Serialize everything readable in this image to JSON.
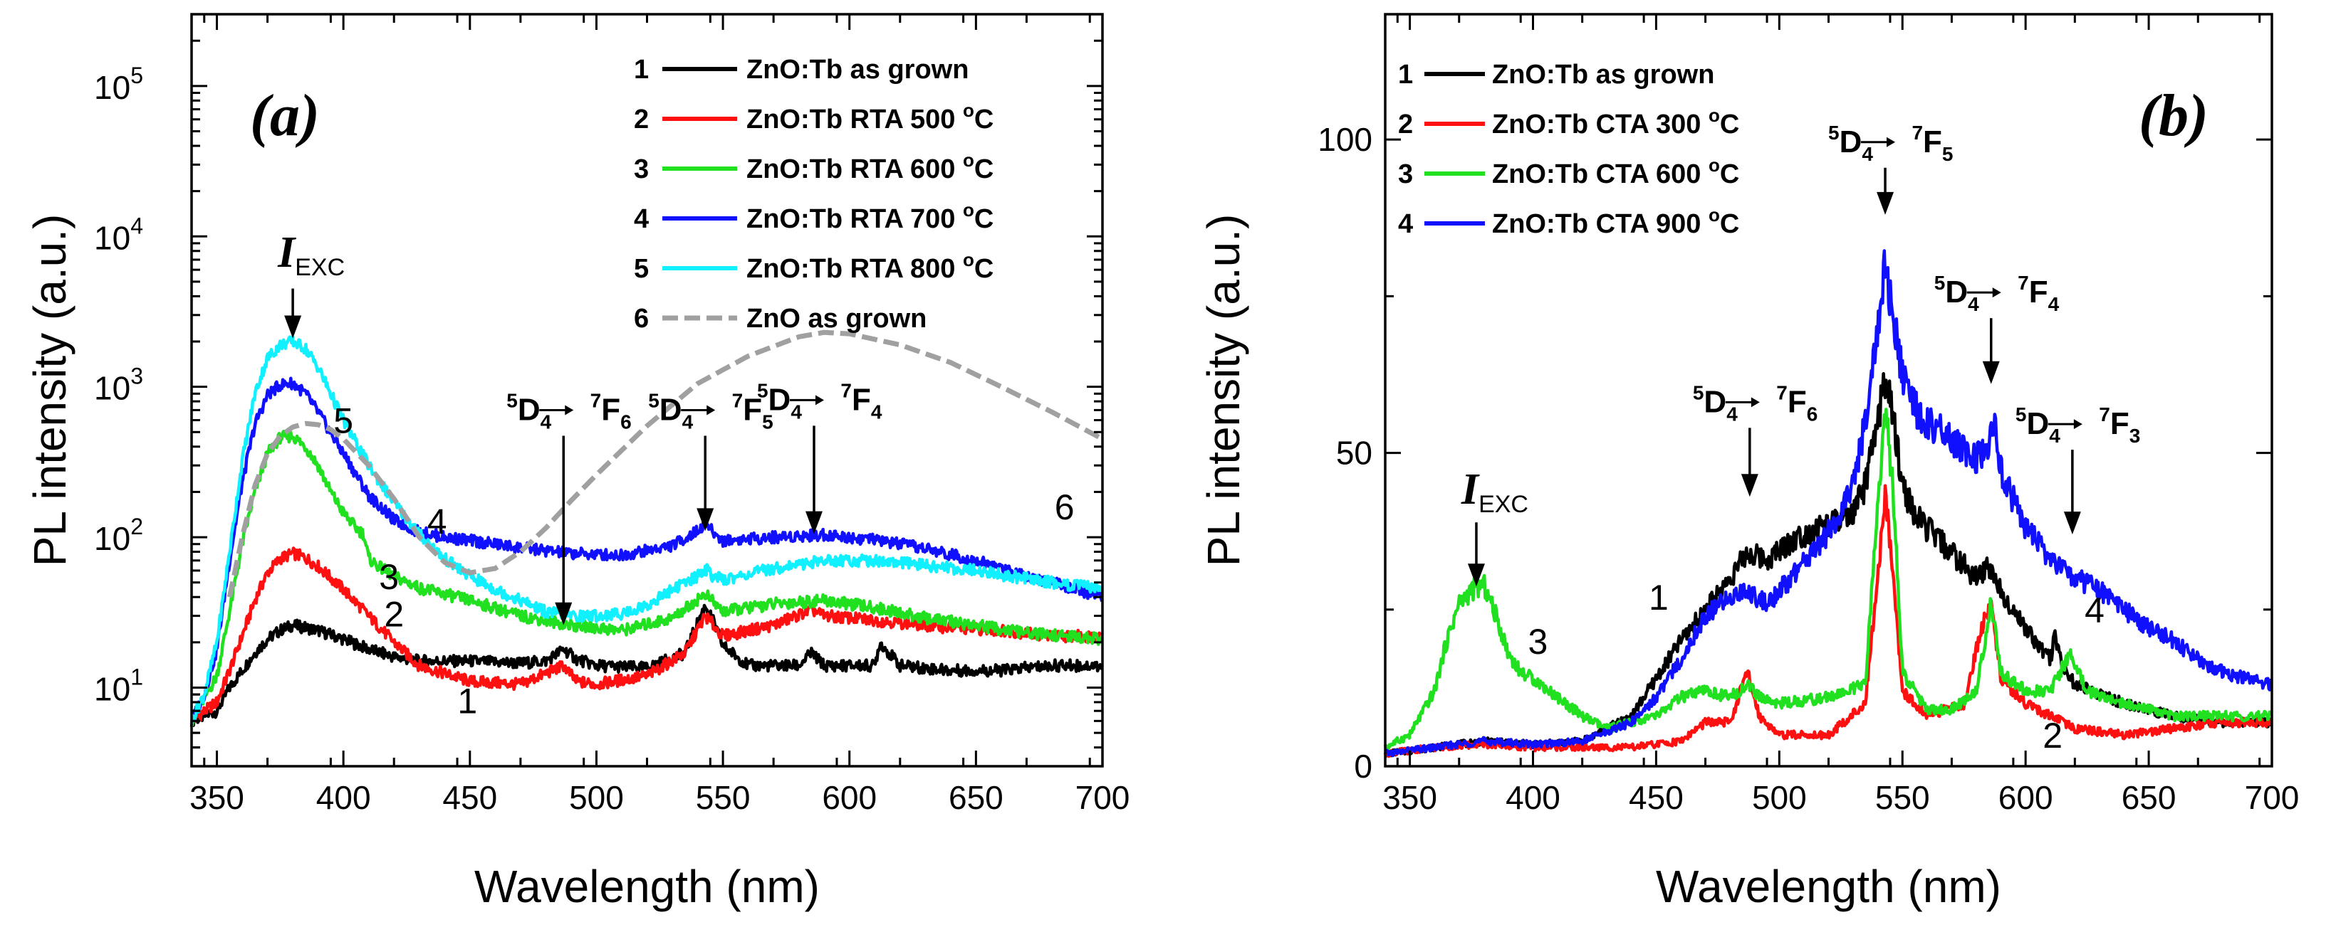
{
  "colors": {
    "series_black": "#000000",
    "series_red": "#ff1010",
    "series_green": "#20e020",
    "series_blue": "#1010ff",
    "series_cyan": "#10f0ff",
    "series_gray": "#a0a0a0"
  },
  "chart_data": [
    {
      "type": "line",
      "panel_label": "a",
      "xlabel": "Wavelength (nm)",
      "ylabel": "PL intensity (a.u.)",
      "yscale": "log",
      "xlim": [
        340,
        700
      ],
      "ylim": [
        3,
        300000
      ],
      "x_ticks": [
        350,
        400,
        450,
        500,
        550,
        600,
        650,
        700
      ],
      "x_tick_labels": [
        "350",
        "400",
        "450",
        "500",
        "550",
        "600",
        "650",
        "700"
      ],
      "y_tick_labels": [
        {
          "value": 10,
          "base": "10",
          "exp": "1"
        },
        {
          "value": 100,
          "base": "10",
          "exp": "2"
        },
        {
          "value": 1000,
          "base": "10",
          "exp": "3"
        },
        {
          "value": 10000,
          "base": "10",
          "exp": "4"
        },
        {
          "value": 100000,
          "base": "10",
          "exp": "5"
        }
      ],
      "series": [
        {
          "num": "1",
          "name": "ZnO:Tb as grown",
          "color": "#000000",
          "dashed": false,
          "x": [
            340,
            350,
            355,
            360,
            365,
            370,
            375,
            380,
            385,
            390,
            400,
            410,
            420,
            430,
            450,
            470,
            480,
            487,
            492,
            500,
            520,
            535,
            540,
            543,
            546,
            550,
            560,
            580,
            585,
            590,
            600,
            610,
            612,
            620,
            640,
            660,
            680,
            700
          ],
          "y": [
            6,
            7,
            10,
            13,
            17,
            21,
            24,
            26,
            25,
            24,
            21,
            18,
            16,
            15,
            15,
            14.5,
            15,
            18,
            15.5,
            14,
            13.5,
            17,
            27,
            35,
            28,
            19,
            14,
            14,
            17,
            14,
            14,
            14,
            20,
            14,
            13,
            13,
            14,
            14
          ]
        },
        {
          "num": "2",
          "name": "ZnO:Tb RTA 500 °C",
          "color": "#ff1010",
          "dashed": false,
          "x": [
            340,
            350,
            355,
            360,
            365,
            370,
            375,
            380,
            385,
            390,
            400,
            410,
            420,
            430,
            450,
            470,
            487,
            492,
            500,
            520,
            535,
            543,
            550,
            570,
            585,
            590,
            600,
            620,
            640,
            660,
            680,
            700
          ],
          "y": [
            6,
            8,
            13,
            22,
            38,
            58,
            72,
            78,
            73,
            64,
            45,
            30,
            20,
            14,
            11,
            10.5,
            14,
            11,
            10.5,
            12,
            17,
            30,
            22,
            26,
            33,
            30,
            29,
            27,
            25,
            24,
            22,
            22
          ]
        },
        {
          "num": "3",
          "name": "ZnO:Tb RTA 600 °C",
          "color": "#20e020",
          "dashed": false,
          "x": [
            340,
            350,
            355,
            360,
            365,
            370,
            375,
            380,
            385,
            390,
            395,
            400,
            405,
            408,
            410,
            415,
            420,
            430,
            450,
            470,
            490,
            510,
            530,
            543,
            550,
            570,
            590,
            610,
            630,
            650,
            670,
            700
          ],
          "y": [
            6,
            12,
            32,
            90,
            200,
            360,
            460,
            470,
            400,
            300,
            200,
            145,
            115,
            105,
            72,
            62,
            55,
            46,
            38,
            30,
            26,
            24,
            29,
            42,
            32,
            36,
            38,
            34,
            29,
            26,
            23,
            21
          ]
        },
        {
          "num": "4",
          "name": "ZnO:Tb RTA 700 °C",
          "color": "#1010ff",
          "dashed": false,
          "x": [
            340,
            345,
            350,
            355,
            360,
            365,
            370,
            375,
            380,
            385,
            390,
            400,
            410,
            420,
            430,
            440,
            450,
            470,
            490,
            510,
            530,
            540,
            543,
            546,
            550,
            570,
            590,
            610,
            630,
            650,
            670,
            700
          ],
          "y": [
            6,
            9,
            18,
            70,
            230,
            560,
            880,
            1030,
            1060,
            900,
            680,
            360,
            190,
            130,
            108,
            100,
            95,
            85,
            78,
            76,
            88,
            110,
            125,
            108,
            95,
            100,
            104,
            96,
            84,
            70,
            56,
            40
          ]
        },
        {
          "num": "5",
          "name": "ZnO:Tb RTA 800 °C",
          "color": "#10f0ff",
          "dashed": false,
          "x": [
            340,
            345,
            350,
            355,
            360,
            365,
            370,
            375,
            380,
            385,
            390,
            395,
            400,
            410,
            420,
            430,
            440,
            450,
            460,
            470,
            480,
            490,
            500,
            510,
            520,
            530,
            540,
            543,
            546,
            550,
            570,
            590,
            610,
            630,
            650,
            670,
            700
          ],
          "y": [
            6,
            9,
            20,
            80,
            320,
            900,
            1550,
            1900,
            2000,
            1800,
            1350,
            900,
            600,
            300,
            170,
            105,
            72,
            55,
            45,
            38,
            32,
            30,
            30,
            31,
            35,
            45,
            55,
            62,
            55,
            52,
            62,
            70,
            70,
            65,
            60,
            53,
            45
          ]
        },
        {
          "num": "6",
          "name": "ZnO as grown",
          "color": "#a0a0a0",
          "dashed": true,
          "x": [
            355,
            360,
            365,
            370,
            375,
            380,
            385,
            390,
            395,
            400,
            410,
            420,
            430,
            440,
            450,
            460,
            470,
            480,
            490,
            500,
            520,
            540,
            560,
            580,
            590,
            600,
            620,
            640,
            660,
            680,
            700
          ],
          "y": [
            40,
            100,
            220,
            360,
            470,
            540,
            570,
            560,
            520,
            450,
            300,
            180,
            100,
            68,
            58,
            62,
            80,
            115,
            175,
            260,
            550,
            1050,
            1600,
            2150,
            2300,
            2250,
            1900,
            1450,
            1000,
            680,
            450
          ]
        }
      ],
      "curve_numbers": [
        {
          "text": "1",
          "x": 449,
          "y": 8.2
        },
        {
          "text": "2",
          "x": 420,
          "y": 31
        },
        {
          "text": "3",
          "x": 418,
          "y": 55
        },
        {
          "text": "4",
          "x": 437,
          "y": 128
        },
        {
          "text": "5",
          "x": 400,
          "y": 600
        },
        {
          "text": "6",
          "x": 685,
          "y": 160
        }
      ],
      "annotations": [
        {
          "id": "iexc",
          "text": "I",
          "sub": "EXC",
          "x": 380,
          "y_text": 7000,
          "y_start": 4500,
          "y_end": 2100
        },
        {
          "id": "d4f6",
          "text": "5D4→7F6",
          "pre_sup": "5",
          "main": "D",
          "sub": "4",
          "sup2": "7",
          "main2": "F",
          "sub2": "6",
          "x": 487,
          "y_text": 600,
          "y_start": 480,
          "y_end": 26
        },
        {
          "id": "d4f5",
          "text": "5D4→7F5",
          "pre_sup": "5",
          "main": "D",
          "sub": "4",
          "sup2": "7",
          "main2": "F",
          "sub2": "5",
          "x": 543,
          "y_text": 600,
          "y_start": 480,
          "y_end": 110
        },
        {
          "id": "d4f4",
          "text": "5D4→7F4",
          "pre_sup": "5",
          "main": "D",
          "sub": "4",
          "sup2": "7",
          "main2": "F",
          "sub2": "4",
          "x": 586,
          "y_text": 700,
          "y_start": 520,
          "y_end": 105
        }
      ]
    },
    {
      "type": "line",
      "panel_label": "b",
      "xlabel": "Wavelength (nm)",
      "ylabel": "PL intensity (a.u.)",
      "yscale": "linear",
      "xlim": [
        340,
        700
      ],
      "ylim": [
        0,
        120
      ],
      "x_ticks": [
        350,
        400,
        450,
        500,
        550,
        600,
        650,
        700
      ],
      "x_tick_labels": [
        "350",
        "400",
        "450",
        "500",
        "550",
        "600",
        "650",
        "700"
      ],
      "y_ticks": [
        0,
        50,
        100
      ],
      "y_tick_labels": [
        "0",
        "50",
        "100"
      ],
      "series": [
        {
          "num": "1",
          "name": "ZnO:Tb as grown",
          "color": "#000000",
          "dashed": false,
          "x": [
            340,
            360,
            380,
            400,
            420,
            440,
            460,
            480,
            487,
            495,
            505,
            515,
            525,
            530,
            535,
            540,
            543,
            546,
            550,
            555,
            560,
            570,
            580,
            585,
            590,
            600,
            610,
            612,
            615,
            620,
            640,
            660,
            680,
            700
          ],
          "y": [
            2,
            3,
            4,
            3.5,
            4,
            8,
            20,
            30,
            34,
            33,
            36,
            38,
            39,
            40,
            45,
            55,
            62,
            56,
            45,
            40,
            38,
            34,
            30,
            32,
            28,
            22,
            17,
            21,
            16,
            13,
            10,
            8,
            7,
            7
          ]
        },
        {
          "num": "2",
          "name": "ZnO:Tb CTA 300 °C",
          "color": "#ff1010",
          "dashed": false,
          "x": [
            340,
            360,
            380,
            400,
            420,
            440,
            460,
            470,
            480,
            487,
            492,
            500,
            520,
            535,
            540,
            543,
            546,
            550,
            560,
            575,
            582,
            586,
            590,
            600,
            610,
            620,
            640,
            660,
            680,
            700
          ],
          "y": [
            2,
            3,
            3.5,
            3,
            3,
            3,
            4,
            7,
            7,
            15,
            8,
            5,
            5,
            10,
            30,
            44,
            32,
            12,
            8,
            10,
            22,
            26,
            14,
            10,
            8,
            6,
            5,
            6,
            7,
            7
          ]
        },
        {
          "num": "3",
          "name": "ZnO:Tb CTA 600 °C",
          "color": "#20e020",
          "dashed": false,
          "x": [
            340,
            350,
            360,
            365,
            370,
            375,
            380,
            385,
            390,
            395,
            400,
            410,
            420,
            430,
            440,
            450,
            460,
            470,
            480,
            487,
            492,
            500,
            520,
            535,
            540,
            543,
            546,
            550,
            560,
            570,
            580,
            586,
            590,
            600,
            610,
            618,
            625,
            640,
            660,
            680,
            700
          ],
          "y": [
            3,
            5,
            12,
            20,
            26,
            28,
            29,
            24,
            18,
            15,
            14,
            11,
            8,
            6,
            7,
            8,
            11,
            12,
            11,
            13,
            11,
            10,
            11,
            13,
            42,
            57,
            45,
            15,
            9,
            9,
            12,
            26,
            15,
            12,
            12,
            18,
            12,
            10,
            8,
            8,
            8
          ]
        },
        {
          "num": "4",
          "name": "ZnO:Tb CTA 900 °C",
          "color": "#1010ff",
          "dashed": false,
          "x": [
            340,
            360,
            380,
            400,
            420,
            440,
            450,
            460,
            470,
            480,
            487,
            495,
            505,
            515,
            525,
            530,
            535,
            540,
            543,
            546,
            550,
            555,
            560,
            570,
            575,
            580,
            585,
            587,
            590,
            600,
            610,
            620,
            630,
            640,
            650,
            660,
            670,
            680,
            700
          ],
          "y": [
            2,
            3,
            4,
            3.5,
            4,
            7,
            11,
            17,
            24,
            27,
            28,
            26,
            30,
            35,
            40,
            45,
            55,
            70,
            80,
            72,
            62,
            57,
            55,
            52,
            50,
            49,
            50,
            55,
            47,
            38,
            33,
            30,
            28,
            25,
            22,
            20,
            17,
            15,
            13
          ]
        }
      ],
      "curve_numbers": [
        {
          "text": "1",
          "x": 451,
          "y": 27
        },
        {
          "text": "2",
          "x": 611,
          "y": 5
        },
        {
          "text": "3",
          "x": 402,
          "y": 20
        },
        {
          "text": "4",
          "x": 628,
          "y": 25
        }
      ],
      "annotations": [
        {
          "id": "iexc",
          "text": "I",
          "sub": "EXC",
          "x": 377,
          "y_text": 43,
          "y_start": 40,
          "y_end": 39
        },
        {
          "id": "d4f6",
          "text": "5D4→7F6",
          "pre_sup": "5",
          "main": "D",
          "sub": "4",
          "sup2": "7",
          "main2": "F",
          "sub2": "6",
          "x": 488,
          "y_text": 56.5,
          "y_start": 52.5,
          "y_end": 43
        },
        {
          "id": "d4f5",
          "text": "5D4→7F5",
          "pre_sup": "5",
          "main": "D",
          "sub": "4",
          "sup2": "7",
          "main2": "F",
          "sub2": "5",
          "x": 543,
          "y_text": 98,
          "y_start": 94,
          "y_end": 88
        },
        {
          "id": "d4f4",
          "text": "5D4→7F4",
          "pre_sup": "5",
          "main": "D",
          "sub": "4",
          "sup2": "7",
          "main2": "F",
          "sub2": "4",
          "x": 586,
          "y_text": 74,
          "y_start": 70,
          "y_end": 61
        },
        {
          "id": "d4f3",
          "text": "5D4→7F3",
          "pre_sup": "5",
          "main": "D",
          "sub": "4",
          "sup2": "7",
          "main2": "F",
          "sub2": "3",
          "x": 619,
          "y_text": 53,
          "y_start": 49,
          "y_end": 37
        }
      ]
    }
  ]
}
